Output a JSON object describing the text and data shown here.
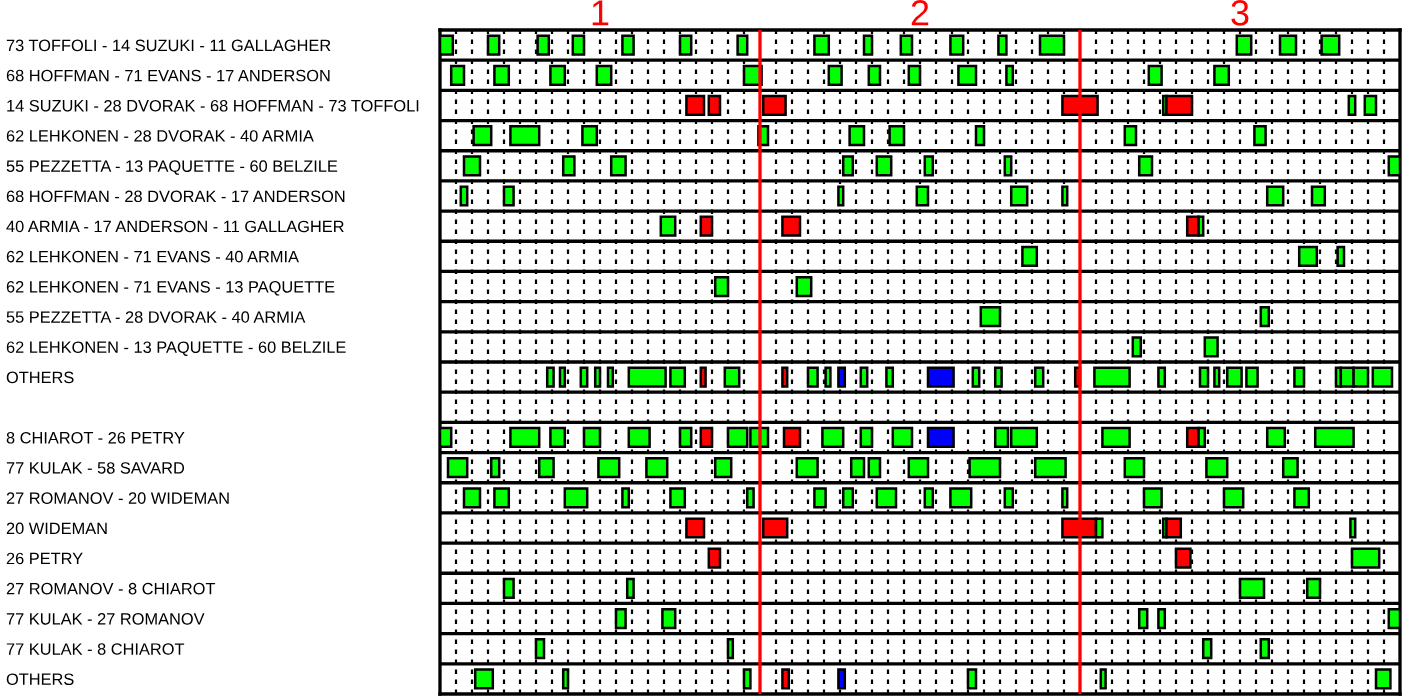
{
  "chart_data": {
    "type": "bar",
    "orientation": "horizontal",
    "grid": "x",
    "categories": [
      "73 TOFFOLI - 14 SUZUKI - 11 GALLAGHER",
      "68 HOFFMAN - 71 EVANS - 17 ANDERSON",
      "14 SUZUKI - 28 DVORAK - 68 HOFFMAN - 73 TOFFOLI",
      "62 LEHKONEN - 28 DVORAK - 40 ARMIA",
      "55 PEZZETTA - 13 PAQUETTE - 60 BELZILE",
      "68 HOFFMAN - 28 DVORAK - 17 ANDERSON",
      "40 ARMIA - 17 ANDERSON - 11 GALLAGHER",
      "62 LEHKONEN - 71 EVANS - 40 ARMIA",
      "62 LEHKONEN - 71 EVANS - 13 PAQUETTE",
      "55 PEZZETTA - 28 DVORAK - 40 ARMIA",
      "62 LEHKONEN - 13 PAQUETTE - 60 BELZILE",
      "OTHERS",
      null,
      "8 CHIAROT - 26 PETRY",
      "77 KULAK - 58 SAVARD",
      "27 ROMANOV - 20 WIDEMAN",
      "20 WIDEMAN",
      "26 PETRY",
      "27 ROMANOV - 8 CHIAROT",
      "77 KULAK - 27 ROMANOV",
      "77 KULAK - 8 CHIAROT",
      "OTHERS"
    ],
    "xlim": [
      0.5,
      3.5
    ],
    "xticks": [
      {
        "value": 0.55,
        "label": null
      },
      {
        "value": 0.6,
        "label": null
      },
      {
        "value": 0.65,
        "label": null
      },
      {
        "value": 0.7,
        "label": null
      },
      {
        "value": 0.75,
        "label": null
      },
      {
        "value": 0.8,
        "label": null
      },
      {
        "value": 0.85,
        "label": null
      },
      {
        "value": 0.9,
        "label": null
      },
      {
        "value": 0.95,
        "label": null
      },
      1,
      {
        "value": 1.05,
        "label": null
      },
      {
        "value": 1.1,
        "label": null
      },
      {
        "value": 1.15,
        "label": null
      },
      {
        "value": 1.2,
        "label": null
      },
      {
        "value": 1.25,
        "label": null
      },
      {
        "value": 1.3,
        "label": null
      },
      {
        "value": 1.35,
        "label": null
      },
      {
        "value": 1.4,
        "label": null
      },
      {
        "value": 1.45,
        "label": null
      },
      {
        "value": 1.55,
        "label": null
      },
      {
        "value": 1.6,
        "label": null
      },
      {
        "value": 1.65,
        "label": null
      },
      {
        "value": 1.7,
        "label": null
      },
      {
        "value": 1.75,
        "label": null
      },
      {
        "value": 1.8,
        "label": null
      },
      {
        "value": 1.85,
        "label": null
      },
      {
        "value": 1.9,
        "label": null
      },
      {
        "value": 1.95,
        "label": null
      },
      2,
      {
        "value": 2.05,
        "label": null
      },
      {
        "value": 2.1,
        "label": null
      },
      {
        "value": 2.15,
        "label": null
      },
      {
        "value": 2.2,
        "label": null
      },
      {
        "value": 2.25,
        "label": null
      },
      {
        "value": 2.3,
        "label": null
      },
      {
        "value": 2.35,
        "label": null
      },
      {
        "value": 2.4,
        "label": null
      },
      {
        "value": 2.45,
        "label": null
      },
      {
        "value": 2.55,
        "label": null
      },
      {
        "value": 2.6,
        "label": null
      },
      {
        "value": 2.65,
        "label": null
      },
      {
        "value": 2.7,
        "label": null
      },
      {
        "value": 2.75,
        "label": null
      },
      {
        "value": 2.8,
        "label": null
      },
      {
        "value": 2.85,
        "label": null
      },
      {
        "value": 2.9,
        "label": null
      },
      {
        "value": 2.95,
        "label": null
      },
      3,
      {
        "value": 3.05,
        "label": null
      },
      {
        "value": 3.1,
        "label": null
      },
      {
        "value": 3.15,
        "label": null
      },
      {
        "value": 3.2,
        "label": null
      },
      {
        "value": 3.25,
        "label": null
      },
      {
        "value": 3.3,
        "label": null
      },
      {
        "value": 3.35,
        "label": null
      },
      {
        "value": 3.4,
        "label": null
      },
      {
        "value": 3.45,
        "label": null
      }
    ],
    "ref_lines": [
      {
        "axis": "x",
        "value": 1.5,
        "color": "#ff0000"
      },
      {
        "axis": "x",
        "value": 2.5,
        "color": "#ff0000"
      }
    ],
    "series": [
      {
        "color": "#00ff00",
        "base": [
          0.5,
          0.535,
          1.27,
          0.605,
          0.575,
          0.565,
          1.19,
          2.32,
          1.36,
          2.19,
          2.665,
          0.835,
          null,
          0.5,
          0.525,
          0.575,
          1.27,
          1.34,
          0.7,
          1.05,
          0.8,
          0.61
        ],
        "values": [
          0.04,
          0.04,
          0.055,
          0.055,
          0.05,
          0.02,
          0.045,
          0.045,
          0.04,
          0.06,
          0.025,
          0.02,
          null,
          0.035,
          0.06,
          0.05,
          0.055,
          0.035,
          0.03,
          0.03,
          0.025,
          0.055
        ],
        "colors": [
          "#00ff00",
          "#00ff00",
          "#ff0000",
          "#00ff00",
          "#00ff00",
          "#00ff00",
          "#00ff00",
          "#00ff00",
          "#00ff00",
          "#00ff00",
          "#00ff00",
          "#00ff00",
          null,
          "#00ff00",
          "#00ff00",
          "#00ff00",
          "#ff0000",
          "#ff0000",
          "#00ff00",
          "#00ff00",
          "#00ff00",
          "#00ff00"
        ]
      },
      {
        "color": "#00ff00",
        "base": [
          0.65,
          0.67,
          1.34,
          0.72,
          0.885,
          0.7,
          1.315,
          3.185,
          1.615,
          3.065,
          2.89,
          0.875,
          null,
          0.72,
          0.66,
          0.67,
          1.51,
          2.8,
          1.085,
          1.195,
          1.4,
          0.885
        ],
        "values": [
          0.035,
          0.045,
          0.035,
          0.09,
          0.035,
          0.03,
          0.035,
          0.055,
          0.045,
          0.025,
          0.04,
          0.015,
          null,
          0.09,
          0.025,
          0.045,
          0.075,
          0.045,
          0.02,
          0.04,
          0.015,
          0.015
        ],
        "colors": [
          "#00ff00",
          "#00ff00",
          "#ff0000",
          "#00ff00",
          "#00ff00",
          "#00ff00",
          "#ff0000",
          "#00ff00",
          "#00ff00",
          "#00ff00",
          "#00ff00",
          "#00ff00",
          null,
          "#00ff00",
          "#00ff00",
          "#00ff00",
          "#ff0000",
          "#ff0000",
          "#00ff00",
          "#00ff00",
          "#00ff00",
          "#00ff00"
        ]
      },
      {
        "color": "#00ff00",
        "base": [
          0.805,
          0.845,
          1.51,
          0.945,
          1.035,
          1.745,
          1.57,
          3.305,
          null,
          null,
          null,
          0.94,
          null,
          0.845,
          0.81,
          0.89,
          2.445,
          3.35,
          3.0,
          2.685,
          2.885,
          1.45
        ],
        "values": [
          0.035,
          0.045,
          0.07,
          0.045,
          0.045,
          0.015,
          0.055,
          0.02,
          null,
          null,
          null,
          0.02,
          null,
          0.045,
          0.045,
          0.07,
          0.105,
          0.085,
          0.075,
          0.025,
          0.025,
          0.02
        ],
        "colors": [
          "#00ff00",
          "#00ff00",
          "#ff0000",
          "#00ff00",
          "#00ff00",
          "#00ff00",
          "#ff0000",
          "#00ff00",
          null,
          null,
          null,
          "#00ff00",
          null,
          "#00ff00",
          "#00ff00",
          "#00ff00",
          "#ff0000",
          "#00ff00",
          "#00ff00",
          "#00ff00",
          "#00ff00",
          "#00ff00"
        ]
      },
      {
        "color": "#00ff00",
        "base": [
          0.915,
          0.99,
          2.445,
          1.495,
          1.76,
          1.99,
          2.87,
          null,
          null,
          null,
          null,
          0.985,
          null,
          0.95,
          0.995,
          1.07,
          2.55,
          null,
          3.21,
          2.745,
          3.065,
          1.57
        ],
        "values": [
          0.035,
          0.045,
          0.11,
          0.03,
          0.03,
          0.035,
          0.015,
          null,
          null,
          null,
          null,
          0.015,
          null,
          0.05,
          0.065,
          0.02,
          0.02,
          null,
          0.04,
          0.02,
          0.025,
          0.02
        ],
        "colors": [
          "#00ff00",
          "#00ff00",
          "#ff0000",
          "#00ff00",
          "#00ff00",
          "#00ff00",
          "#00ff00",
          null,
          null,
          null,
          null,
          "#00ff00",
          null,
          "#00ff00",
          "#00ff00",
          "#00ff00",
          "#00ff00",
          null,
          "#00ff00",
          "#00ff00",
          "#00ff00",
          "#ff0000"
        ]
      },
      {
        "color": "#00ff00",
        "base": [
          1.07,
          1.45,
          2.76,
          1.78,
          1.865,
          2.285,
          2.835,
          null,
          null,
          null,
          null,
          1.025,
          null,
          1.09,
          1.145,
          1.22,
          2.76,
          null,
          null,
          3.465,
          null,
          1.745
        ],
        "values": [
          0.035,
          0.055,
          0.01,
          0.045,
          0.045,
          0.05,
          0.035,
          null,
          null,
          null,
          null,
          0.015,
          null,
          0.065,
          0.065,
          0.045,
          0.01,
          null,
          null,
          0.035,
          null,
          0.02
        ],
        "colors": [
          "#00ff00",
          "#00ff00",
          "#00ff00",
          "#00ff00",
          "#00ff00",
          "#00ff00",
          "#ff0000",
          null,
          null,
          null,
          null,
          "#00ff00",
          null,
          "#00ff00",
          "#00ff00",
          "#00ff00",
          "#00ff00",
          null,
          null,
          "#00ff00",
          null,
          "#0000ff"
        ]
      },
      {
        "color": "#00ff00",
        "base": [
          1.25,
          1.715,
          2.77,
          1.905,
          2.015,
          2.445,
          null,
          null,
          null,
          null,
          null,
          1.09,
          null,
          1.25,
          1.36,
          1.46,
          2.77,
          null,
          null,
          null,
          null,
          2.15
        ],
        "values": [
          0.035,
          0.04,
          0.08,
          0.045,
          0.025,
          0.015,
          null,
          null,
          null,
          null,
          null,
          0.115,
          null,
          0.035,
          0.05,
          0.02,
          0.045,
          null,
          null,
          null,
          null,
          0.025
        ],
        "colors": [
          "#00ff00",
          "#00ff00",
          "#ff0000",
          "#00ff00",
          "#00ff00",
          "#00ff00",
          null,
          null,
          null,
          null,
          null,
          "#00ff00",
          null,
          "#00ff00",
          "#00ff00",
          "#00ff00",
          "#ff0000",
          null,
          null,
          null,
          null,
          "#00ff00"
        ]
      },
      {
        "color": "#00ff00",
        "base": [
          1.43,
          1.84,
          3.34,
          2.175,
          2.265,
          3.085,
          null,
          null,
          null,
          null,
          null,
          1.22,
          null,
          1.315,
          1.615,
          1.67,
          3.345,
          null,
          null,
          null,
          null,
          2.565
        ],
        "values": [
          0.03,
          0.035,
          0.02,
          0.025,
          0.02,
          0.05,
          null,
          null,
          null,
          null,
          null,
          0.045,
          null,
          0.035,
          0.065,
          0.035,
          0.015,
          null,
          null,
          null,
          null,
          0.015
        ],
        "colors": [
          "#00ff00",
          "#00ff00",
          "#00ff00",
          "#00ff00",
          "#00ff00",
          "#00ff00",
          null,
          null,
          null,
          null,
          null,
          "#00ff00",
          null,
          "#ff0000",
          "#00ff00",
          "#00ff00",
          "#00ff00",
          null,
          null,
          null,
          null,
          "#00ff00"
        ]
      },
      {
        "color": "#00ff00",
        "base": [
          1.67,
          1.965,
          3.39,
          2.64,
          2.685,
          3.225,
          null,
          null,
          null,
          null,
          null,
          1.315,
          null,
          1.4,
          1.785,
          1.76,
          null,
          null,
          null,
          null,
          null,
          3.425
        ],
        "values": [
          0.045,
          0.035,
          0.035,
          0.035,
          0.04,
          0.04,
          null,
          null,
          null,
          null,
          null,
          0.015,
          null,
          0.06,
          0.04,
          0.03,
          null,
          null,
          null,
          null,
          null,
          0.045
        ],
        "colors": [
          "#00ff00",
          "#00ff00",
          "#00ff00",
          "#00ff00",
          "#00ff00",
          "#00ff00",
          null,
          null,
          null,
          null,
          null,
          "#ff0000",
          null,
          "#00ff00",
          "#00ff00",
          "#00ff00",
          null,
          null,
          null,
          null,
          null,
          "#00ff00"
        ]
      },
      {
        "color": "#00ff00",
        "base": [
          1.825,
          2.12,
          null,
          3.045,
          3.465,
          null,
          null,
          null,
          null,
          null,
          null,
          1.39,
          null,
          1.47,
          1.84,
          1.865,
          null,
          null,
          null,
          null,
          null,
          null
        ],
        "values": [
          0.025,
          0.055,
          null,
          0.035,
          0.035,
          null,
          null,
          null,
          null,
          null,
          null,
          0.045,
          null,
          0.055,
          0.035,
          0.06,
          null,
          null,
          null,
          null,
          null,
          null
        ]
      },
      {
        "color": "#00ff00",
        "base": [
          1.94,
          2.27,
          null,
          null,
          null,
          null,
          null,
          null,
          null,
          null,
          null,
          1.57,
          null,
          1.575,
          1.965,
          2.015,
          null,
          null,
          null,
          null,
          null,
          null
        ],
        "values": [
          0.035,
          0.02,
          null,
          null,
          null,
          null,
          null,
          null,
          null,
          null,
          null,
          0.015,
          null,
          0.05,
          0.06,
          0.025,
          null,
          null,
          null,
          null,
          null,
          null
        ],
        "colors": [
          "#00ff00",
          "#00ff00",
          null,
          null,
          null,
          null,
          null,
          null,
          null,
          null,
          null,
          "#ff0000",
          null,
          "#ff0000",
          "#00ff00",
          "#00ff00",
          null,
          null,
          null,
          null,
          null,
          null
        ]
      },
      {
        "color": "#00ff00",
        "base": [
          2.095,
          2.715,
          null,
          null,
          null,
          null,
          null,
          null,
          null,
          null,
          null,
          1.65,
          null,
          1.695,
          2.155,
          2.095,
          null,
          null,
          null,
          null,
          null,
          null
        ],
        "values": [
          0.04,
          0.04,
          null,
          null,
          null,
          null,
          null,
          null,
          null,
          null,
          null,
          0.03,
          null,
          0.065,
          0.095,
          0.065,
          null,
          null,
          null,
          null,
          null,
          null
        ]
      },
      {
        "color": "#00ff00",
        "base": [
          2.245,
          2.92,
          null,
          null,
          null,
          null,
          null,
          null,
          null,
          null,
          null,
          1.705,
          null,
          1.815,
          2.36,
          2.265,
          null,
          null,
          null,
          null,
          null,
          null
        ],
        "values": [
          0.025,
          0.045,
          null,
          null,
          null,
          null,
          null,
          null,
          null,
          null,
          null,
          0.015,
          null,
          0.035,
          0.095,
          0.025,
          null,
          null,
          null,
          null,
          null,
          null
        ]
      },
      {
        "color": "#00ff00",
        "base": [
          2.375,
          null,
          null,
          null,
          null,
          null,
          null,
          null,
          null,
          null,
          null,
          1.745,
          null,
          1.915,
          2.64,
          2.445,
          null,
          null,
          null,
          null,
          null,
          null
        ],
        "values": [
          0.075,
          null,
          null,
          null,
          null,
          null,
          null,
          null,
          null,
          null,
          null,
          0.02,
          null,
          0.06,
          0.06,
          0.015,
          null,
          null,
          null,
          null,
          null,
          null
        ],
        "colors": [
          "#00ff00",
          null,
          null,
          null,
          null,
          null,
          null,
          null,
          null,
          null,
          null,
          "#0000ff",
          null,
          "#00ff00",
          "#00ff00",
          "#00ff00",
          null,
          null,
          null,
          null,
          null,
          null
        ]
      },
      {
        "color": "#00ff00",
        "base": [
          2.99,
          null,
          null,
          null,
          null,
          null,
          null,
          null,
          null,
          null,
          null,
          1.815,
          null,
          2.025,
          2.895,
          2.7,
          null,
          null,
          null,
          null,
          null,
          null
        ],
        "values": [
          0.045,
          null,
          null,
          null,
          null,
          null,
          null,
          null,
          null,
          null,
          null,
          0.02,
          null,
          0.08,
          0.065,
          0.055,
          null,
          null,
          null,
          null,
          null,
          null
        ],
        "colors": [
          "#00ff00",
          null,
          null,
          null,
          null,
          null,
          null,
          null,
          null,
          null,
          null,
          "#00ff00",
          null,
          "#0000ff",
          "#00ff00",
          "#00ff00",
          null,
          null,
          null,
          null,
          null,
          null
        ]
      },
      {
        "color": "#00ff00",
        "base": [
          3.125,
          null,
          null,
          null,
          null,
          null,
          null,
          null,
          null,
          null,
          null,
          1.895,
          null,
          2.235,
          3.135,
          2.95,
          null,
          null,
          null,
          null,
          null,
          null
        ],
        "values": [
          0.05,
          null,
          null,
          null,
          null,
          null,
          null,
          null,
          null,
          null,
          null,
          0.02,
          null,
          0.04,
          0.045,
          0.06,
          null,
          null,
          null,
          null,
          null,
          null
        ]
      },
      {
        "color": "#00ff00",
        "base": [
          3.255,
          null,
          null,
          null,
          null,
          null,
          null,
          null,
          null,
          null,
          null,
          2.025,
          null,
          2.285,
          null,
          3.17,
          null,
          null,
          null,
          null,
          null,
          null
        ],
        "values": [
          0.055,
          null,
          null,
          null,
          null,
          null,
          null,
          null,
          null,
          null,
          null,
          0.08,
          null,
          0.08,
          null,
          0.045,
          null,
          null,
          null,
          null,
          null,
          null
        ],
        "colors": [
          "#00ff00",
          null,
          null,
          null,
          null,
          null,
          null,
          null,
          null,
          null,
          null,
          "#0000ff",
          null,
          "#00ff00",
          null,
          "#00ff00",
          null,
          null,
          null,
          null,
          null,
          null
        ]
      },
      {
        "color": "#00ff00",
        "base": [
          null,
          null,
          null,
          null,
          null,
          null,
          null,
          null,
          null,
          null,
          null,
          2.165,
          null,
          2.57,
          null,
          null,
          null,
          null,
          null,
          null,
          null,
          null
        ],
        "values": [
          null,
          null,
          null,
          null,
          null,
          null,
          null,
          null,
          null,
          null,
          null,
          0.02,
          null,
          0.085,
          null,
          null,
          null,
          null,
          null,
          null,
          null,
          null
        ]
      },
      {
        "color": "#00ff00",
        "base": [
          null,
          null,
          null,
          null,
          null,
          null,
          null,
          null,
          null,
          null,
          null,
          2.235,
          null,
          2.87,
          null,
          null,
          null,
          null,
          null,
          null,
          null,
          null
        ],
        "values": [
          null,
          null,
          null,
          null,
          null,
          null,
          null,
          null,
          null,
          null,
          null,
          0.02,
          null,
          0.02,
          null,
          null,
          null,
          null,
          null,
          null,
          null,
          null
        ]
      },
      {
        "color": "#00ff00",
        "base": [
          null,
          null,
          null,
          null,
          null,
          null,
          null,
          null,
          null,
          null,
          null,
          2.36,
          null,
          2.835,
          null,
          null,
          null,
          null,
          null,
          null,
          null,
          null
        ],
        "values": [
          null,
          null,
          null,
          null,
          null,
          null,
          null,
          null,
          null,
          null,
          null,
          0.025,
          null,
          0.035,
          null,
          null,
          null,
          null,
          null,
          null,
          null,
          null
        ],
        "colors": [
          null,
          null,
          null,
          null,
          null,
          null,
          null,
          null,
          null,
          null,
          null,
          "#00ff00",
          null,
          "#ff0000",
          null,
          null,
          null,
          null,
          null,
          null,
          null,
          null
        ]
      },
      {
        "color": "#00ff00",
        "base": [
          null,
          null,
          null,
          null,
          null,
          null,
          null,
          null,
          null,
          null,
          null,
          2.485,
          null,
          3.085,
          null,
          null,
          null,
          null,
          null,
          null,
          null,
          null
        ],
        "values": [
          null,
          null,
          null,
          null,
          null,
          null,
          null,
          null,
          null,
          null,
          null,
          0.015,
          null,
          0.055,
          null,
          null,
          null,
          null,
          null,
          null,
          null,
          null
        ],
        "colors": [
          null,
          null,
          null,
          null,
          null,
          null,
          null,
          null,
          null,
          null,
          null,
          "#ff0000",
          null,
          "#00ff00",
          null,
          null,
          null,
          null,
          null,
          null,
          null,
          null
        ]
      },
      {
        "color": "#00ff00",
        "base": [
          null,
          null,
          null,
          null,
          null,
          null,
          null,
          null,
          null,
          null,
          null,
          2.545,
          null,
          3.235,
          null,
          null,
          null,
          null,
          null,
          null,
          null,
          null
        ],
        "values": [
          null,
          null,
          null,
          null,
          null,
          null,
          null,
          null,
          null,
          null,
          null,
          0.11,
          null,
          0.12,
          null,
          null,
          null,
          null,
          null,
          null,
          null,
          null
        ]
      },
      {
        "color": "#00ff00",
        "base": [
          null,
          null,
          null,
          null,
          null,
          null,
          null,
          null,
          null,
          null,
          null,
          2.745,
          null,
          null,
          null,
          null,
          null,
          null,
          null,
          null,
          null,
          null
        ],
        "values": [
          null,
          null,
          null,
          null,
          null,
          null,
          null,
          null,
          null,
          null,
          null,
          0.02,
          null,
          null,
          null,
          null,
          null,
          null,
          null,
          null,
          null,
          null
        ]
      },
      {
        "color": "#00ff00",
        "base": [
          null,
          null,
          null,
          null,
          null,
          null,
          null,
          null,
          null,
          null,
          null,
          2.875,
          null,
          null,
          null,
          null,
          null,
          null,
          null,
          null,
          null,
          null
        ],
        "values": [
          null,
          null,
          null,
          null,
          null,
          null,
          null,
          null,
          null,
          null,
          null,
          0.025,
          null,
          null,
          null,
          null,
          null,
          null,
          null,
          null,
          null,
          null
        ]
      },
      {
        "color": "#00ff00",
        "base": [
          null,
          null,
          null,
          null,
          null,
          null,
          null,
          null,
          null,
          null,
          null,
          2.92,
          null,
          null,
          null,
          null,
          null,
          null,
          null,
          null,
          null,
          null
        ],
        "values": [
          null,
          null,
          null,
          null,
          null,
          null,
          null,
          null,
          null,
          null,
          null,
          0.015,
          null,
          null,
          null,
          null,
          null,
          null,
          null,
          null,
          null,
          null
        ]
      },
      {
        "color": "#00ff00",
        "base": [
          null,
          null,
          null,
          null,
          null,
          null,
          null,
          null,
          null,
          null,
          null,
          2.96,
          null,
          null,
          null,
          null,
          null,
          null,
          null,
          null,
          null,
          null
        ],
        "values": [
          null,
          null,
          null,
          null,
          null,
          null,
          null,
          null,
          null,
          null,
          null,
          0.045,
          null,
          null,
          null,
          null,
          null,
          null,
          null,
          null,
          null,
          null
        ]
      },
      {
        "color": "#00ff00",
        "base": [
          null,
          null,
          null,
          null,
          null,
          null,
          null,
          null,
          null,
          null,
          null,
          3.02,
          null,
          null,
          null,
          null,
          null,
          null,
          null,
          null,
          null,
          null
        ],
        "values": [
          null,
          null,
          null,
          null,
          null,
          null,
          null,
          null,
          null,
          null,
          null,
          0.035,
          null,
          null,
          null,
          null,
          null,
          null,
          null,
          null,
          null,
          null
        ]
      },
      {
        "color": "#00ff00",
        "base": [
          null,
          null,
          null,
          null,
          null,
          null,
          null,
          null,
          null,
          null,
          null,
          3.17,
          null,
          null,
          null,
          null,
          null,
          null,
          null,
          null,
          null,
          null
        ],
        "values": [
          null,
          null,
          null,
          null,
          null,
          null,
          null,
          null,
          null,
          null,
          null,
          0.03,
          null,
          null,
          null,
          null,
          null,
          null,
          null,
          null,
          null,
          null
        ]
      },
      {
        "color": "#00ff00",
        "base": [
          null,
          null,
          null,
          null,
          null,
          null,
          null,
          null,
          null,
          null,
          null,
          3.3,
          null,
          null,
          null,
          null,
          null,
          null,
          null,
          null,
          null,
          null
        ],
        "values": [
          null,
          null,
          null,
          null,
          null,
          null,
          null,
          null,
          null,
          null,
          null,
          0.015,
          null,
          null,
          null,
          null,
          null,
          null,
          null,
          null,
          null,
          null
        ]
      },
      {
        "color": "#00ff00",
        "base": [
          null,
          null,
          null,
          null,
          null,
          null,
          null,
          null,
          null,
          null,
          null,
          3.315,
          null,
          null,
          null,
          null,
          null,
          null,
          null,
          null,
          null,
          null
        ],
        "values": [
          null,
          null,
          null,
          null,
          null,
          null,
          null,
          null,
          null,
          null,
          null,
          0.04,
          null,
          null,
          null,
          null,
          null,
          null,
          null,
          null,
          null,
          null
        ]
      },
      {
        "color": "#00ff00",
        "base": [
          null,
          null,
          null,
          null,
          null,
          null,
          null,
          null,
          null,
          null,
          null,
          3.355,
          null,
          null,
          null,
          null,
          null,
          null,
          null,
          null,
          null,
          null
        ],
        "values": [
          null,
          null,
          null,
          null,
          null,
          null,
          null,
          null,
          null,
          null,
          null,
          0.045,
          null,
          null,
          null,
          null,
          null,
          null,
          null,
          null,
          null,
          null
        ]
      },
      {
        "color": "#00ff00",
        "base": [
          null,
          null,
          null,
          null,
          null,
          null,
          null,
          null,
          null,
          null,
          null,
          3.415,
          null,
          null,
          null,
          null,
          null,
          null,
          null,
          null,
          null,
          null
        ],
        "values": [
          null,
          null,
          null,
          null,
          null,
          null,
          null,
          null,
          null,
          null,
          null,
          0.06,
          null,
          null,
          null,
          null,
          null,
          null,
          null,
          null,
          null,
          null
        ]
      }
    ]
  }
}
